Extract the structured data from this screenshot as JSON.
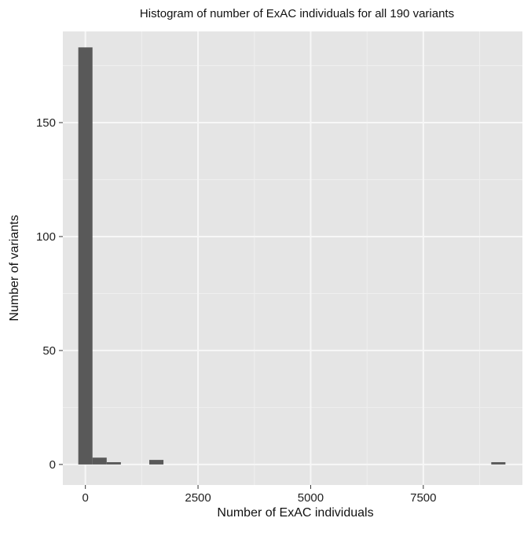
{
  "chart_data": {
    "type": "bar",
    "title": "Histogram of number of ExAC individuals for all 190 variants",
    "xlabel": "Number of ExAC individuals",
    "ylabel": "Number of variants",
    "xlim": [
      -500,
      9700
    ],
    "ylim": [
      -9,
      190
    ],
    "x_ticks": [
      0,
      2500,
      5000,
      7500
    ],
    "y_ticks": [
      0,
      50,
      100,
      150
    ],
    "x_tick_labels": [
      "0",
      "2500",
      "5000",
      "7500"
    ],
    "y_tick_labels": [
      "0",
      "50",
      "100",
      "150"
    ],
    "grid": true,
    "legend": "none",
    "bin_width": 315,
    "bins": [
      {
        "x_start": -157,
        "x_end": 158,
        "count": 183
      },
      {
        "x_start": 158,
        "x_end": 473,
        "count": 3
      },
      {
        "x_start": 473,
        "x_end": 788,
        "count": 1
      },
      {
        "x_start": 1418,
        "x_end": 1733,
        "count": 2
      },
      {
        "x_start": 9008,
        "x_end": 9323,
        "count": 1
      }
    ],
    "colors": {
      "panel_background": "#e5e5e5",
      "grid_major": "#f7f7f7",
      "grid_minor": "#efefef",
      "bar_fill": "#595959"
    }
  }
}
